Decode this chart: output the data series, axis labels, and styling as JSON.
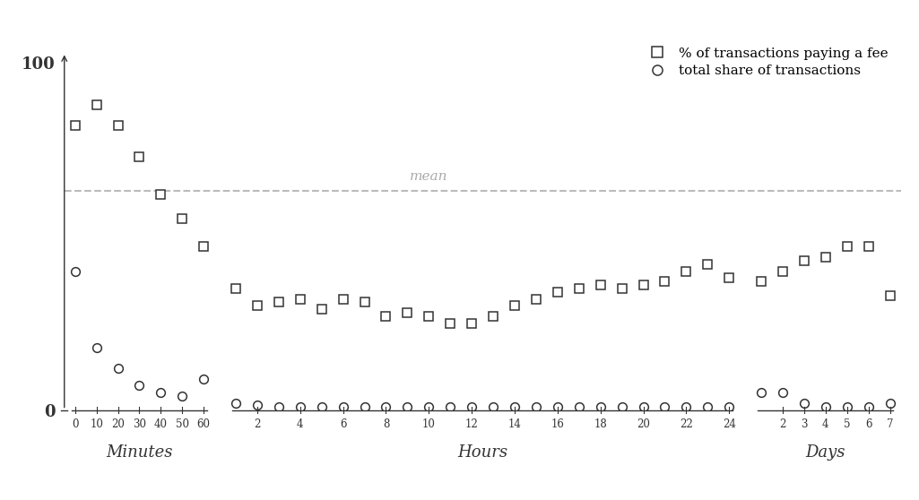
{
  "mean_line_y": 63,
  "mean_label": "mean",
  "mean_label_color": "#aaaaaa",
  "ylim": [
    0,
    108
  ],
  "background_color": "#ffffff",
  "square_color": "#333333",
  "circle_color": "#333333",
  "dashed_color": "#bbbbbb",
  "sq_y_minutes": [
    82,
    88,
    82,
    73,
    62,
    55,
    47
  ],
  "sq_y_hours": [
    35,
    30,
    31,
    32,
    29,
    32,
    31,
    27,
    28,
    27,
    25,
    25,
    27,
    30,
    32,
    34,
    35,
    36,
    35,
    36,
    37,
    40,
    42,
    38
  ],
  "sq_y_days": [
    37,
    40,
    43,
    44,
    47,
    47,
    33
  ],
  "ci_y_minutes": [
    40,
    18,
    12,
    7,
    5,
    4,
    9
  ],
  "ci_y_hours": [
    2,
    1.5,
    1,
    1,
    1,
    1,
    1,
    1,
    1,
    1,
    1,
    1,
    1,
    1,
    1,
    1,
    1,
    1,
    1,
    1,
    1,
    1,
    1,
    1
  ],
  "ci_y_days": [
    5,
    5,
    2,
    1,
    1,
    1,
    2
  ],
  "legend_square_label": "% of transactions paying a fee",
  "legend_circle_label": "total share of transactions",
  "minutes_labels": [
    "0",
    "10",
    "20",
    "30",
    "40",
    "50",
    "60"
  ],
  "hours_labels": [
    "2",
    "4",
    "6",
    "8",
    "10",
    "12",
    "14",
    "16",
    "18",
    "20",
    "22",
    "24"
  ],
  "days_labels": [
    "2",
    "3",
    "4",
    "5",
    "6",
    "7"
  ],
  "segment_labels": [
    "Minutes",
    "Hours",
    "Days"
  ],
  "axis_color": "#333333",
  "tick_label_color": "#333333",
  "segment_label_color": "#333333"
}
